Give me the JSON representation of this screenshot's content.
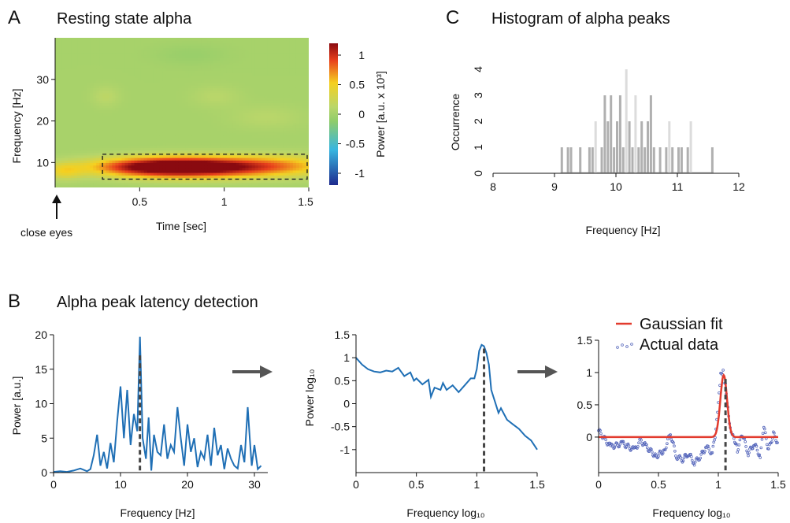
{
  "panels": {
    "A": {
      "letter": "A",
      "title": "Resting state alpha",
      "annotation": "close eyes"
    },
    "B": {
      "letter": "B",
      "title": "Alpha peak latency detection"
    },
    "C": {
      "letter": "C",
      "title": "Histogram of alpha peaks"
    }
  },
  "colors": {
    "accent_blue": "#1f6fb5",
    "fit_red": "#e23b2e",
    "scatter_blue": "#5566bb",
    "hist_gray": "#b0b0b0",
    "arrow_gray": "#555555"
  },
  "chart_data": [
    {
      "id": "A",
      "type": "heatmap",
      "title": "Resting state alpha",
      "xlabel": "Time [sec]",
      "ylabel": "Frequency [Hz]",
      "xlim": [
        0,
        1.5
      ],
      "ylim": [
        4,
        40
      ],
      "xticks": [
        0.5,
        1,
        1.5
      ],
      "yticks": [
        10,
        20,
        30
      ],
      "colorbar": {
        "label": "Power [a.u. x 10³]",
        "ticks": [
          1,
          0.5,
          0,
          -0.5,
          -1
        ],
        "range": [
          -1.2,
          1.2
        ]
      },
      "highlight_box": {
        "x": [
          0.28,
          1.5
        ],
        "y": [
          6,
          12
        ]
      },
      "features": [
        {
          "t": 0.62,
          "f": 9,
          "st": 0.28,
          "sf": 1.6,
          "amp": 1.25
        },
        {
          "t": 0.95,
          "f": 9,
          "st": 0.28,
          "sf": 1.7,
          "amp": 0.75
        },
        {
          "t": 1.35,
          "f": 9.3,
          "st": 0.25,
          "sf": 1.8,
          "amp": 0.45
        },
        {
          "t": 0.05,
          "f": 8,
          "st": 0.08,
          "sf": 1.4,
          "amp": 0.35
        },
        {
          "t": 0.3,
          "f": 26,
          "st": 0.06,
          "sf": 1.8,
          "amp": 0.12
        },
        {
          "t": 0.95,
          "f": 26,
          "st": 0.1,
          "sf": 1.8,
          "amp": 0.1
        },
        {
          "t": 1.25,
          "f": 21,
          "st": 0.15,
          "sf": 2.0,
          "amp": 0.1
        },
        {
          "t": 0.8,
          "f": 36,
          "st": 0.15,
          "sf": 1.8,
          "amp": -0.08
        }
      ]
    },
    {
      "id": "C",
      "type": "bar",
      "title": "Histogram of alpha peaks",
      "xlabel": "Frequency [Hz]",
      "ylabel": "Occurrence",
      "xlim": [
        8,
        12
      ],
      "ylim": [
        0,
        4
      ],
      "xticks": [
        8,
        9,
        10,
        11,
        12
      ],
      "yticks": [
        0,
        1,
        2,
        3,
        4
      ],
      "bin_width": 0.033,
      "bins": [
        {
          "x": 9.1,
          "v": 1,
          "s": "d"
        },
        {
          "x": 9.2,
          "v": 1,
          "s": "d"
        },
        {
          "x": 9.25,
          "v": 1,
          "s": "d"
        },
        {
          "x": 9.4,
          "v": 1,
          "s": "d"
        },
        {
          "x": 9.55,
          "v": 1,
          "s": "d"
        },
        {
          "x": 9.6,
          "v": 1,
          "s": "d"
        },
        {
          "x": 9.65,
          "v": 2,
          "s": "l"
        },
        {
          "x": 9.75,
          "v": 1,
          "s": "d"
        },
        {
          "x": 9.8,
          "v": 3,
          "s": "d"
        },
        {
          "x": 9.85,
          "v": 2,
          "s": "d"
        },
        {
          "x": 9.9,
          "v": 3,
          "s": "d"
        },
        {
          "x": 9.95,
          "v": 1,
          "s": "d"
        },
        {
          "x": 10.0,
          "v": 2,
          "s": "d"
        },
        {
          "x": 10.05,
          "v": 3,
          "s": "d"
        },
        {
          "x": 10.1,
          "v": 1,
          "s": "d"
        },
        {
          "x": 10.15,
          "v": 4,
          "s": "l"
        },
        {
          "x": 10.2,
          "v": 2,
          "s": "d"
        },
        {
          "x": 10.25,
          "v": 1,
          "s": "d"
        },
        {
          "x": 10.3,
          "v": 3,
          "s": "l"
        },
        {
          "x": 10.35,
          "v": 1,
          "s": "d"
        },
        {
          "x": 10.4,
          "v": 2,
          "s": "d"
        },
        {
          "x": 10.45,
          "v": 1,
          "s": "d"
        },
        {
          "x": 10.5,
          "v": 2,
          "s": "d"
        },
        {
          "x": 10.55,
          "v": 3,
          "s": "d"
        },
        {
          "x": 10.6,
          "v": 1,
          "s": "d"
        },
        {
          "x": 10.7,
          "v": 1,
          "s": "d"
        },
        {
          "x": 10.8,
          "v": 1,
          "s": "d"
        },
        {
          "x": 10.85,
          "v": 2,
          "s": "l"
        },
        {
          "x": 10.9,
          "v": 1,
          "s": "d"
        },
        {
          "x": 11.0,
          "v": 1,
          "s": "d"
        },
        {
          "x": 11.05,
          "v": 1,
          "s": "d"
        },
        {
          "x": 11.15,
          "v": 1,
          "s": "d"
        },
        {
          "x": 11.2,
          "v": 2,
          "s": "l"
        },
        {
          "x": 11.55,
          "v": 1,
          "s": "d"
        }
      ]
    },
    {
      "id": "B1",
      "type": "line",
      "xlabel": "Frequency [Hz]",
      "ylabel": "Power [a.u.]",
      "xlim": [
        0,
        32
      ],
      "ylim": [
        0,
        20
      ],
      "xticks": [
        0,
        10,
        20,
        30
      ],
      "yticks": [
        0,
        5,
        10,
        15,
        20
      ],
      "peak_marker_x": 12.9,
      "x": [
        0,
        1,
        2,
        3,
        4,
        5,
        5.5,
        6,
        6.5,
        7,
        7.5,
        8,
        8.5,
        9,
        9.5,
        10,
        10.5,
        11,
        11.5,
        12,
        12.5,
        12.9,
        13.3,
        13.8,
        14.2,
        14.6,
        15,
        15.5,
        16,
        16.5,
        17,
        17.5,
        18,
        18.5,
        19,
        19.5,
        20,
        20.5,
        21,
        21.5,
        22,
        22.5,
        23,
        23.5,
        24,
        24.5,
        25,
        25.5,
        26,
        26.5,
        27,
        27.5,
        28,
        28.5,
        29,
        29.3,
        29.6,
        30,
        30.5,
        31
      ],
      "y": [
        0.1,
        0.2,
        0.1,
        0.3,
        0.6,
        0.2,
        0.5,
        2.5,
        5.5,
        1,
        3,
        0.6,
        4.3,
        1.5,
        7.5,
        12.5,
        5,
        12,
        4,
        8.5,
        6,
        19.7,
        5,
        2,
        8,
        0.3,
        5.5,
        3,
        2.5,
        7,
        2,
        4,
        3,
        9.5,
        5,
        1,
        7,
        3,
        5,
        0.8,
        3,
        2,
        5.5,
        1,
        6.5,
        2.5,
        4,
        0.5,
        3.5,
        2,
        1,
        0.6,
        4,
        1.5,
        9.5,
        5,
        1,
        4,
        0.5,
        1
      ]
    },
    {
      "id": "B2",
      "type": "line",
      "xlabel": "Frequency log₁₀",
      "ylabel": "Power log₁₀",
      "xlim": [
        0,
        1.5
      ],
      "ylim": [
        -1.5,
        1.5
      ],
      "xticks": [
        0,
        0.5,
        1,
        1.5
      ],
      "yticks": [
        1.5,
        1,
        0.5,
        0,
        -0.5,
        -1
      ],
      "peak_marker_x": 1.06,
      "x": [
        0,
        0.05,
        0.1,
        0.15,
        0.2,
        0.25,
        0.3,
        0.35,
        0.4,
        0.45,
        0.48,
        0.5,
        0.55,
        0.6,
        0.62,
        0.65,
        0.7,
        0.72,
        0.75,
        0.8,
        0.85,
        0.9,
        0.95,
        0.98,
        1.0,
        1.02,
        1.04,
        1.06,
        1.08,
        1.1,
        1.12,
        1.15,
        1.18,
        1.2,
        1.25,
        1.3,
        1.35,
        1.4,
        1.45,
        1.5
      ],
      "y": [
        1.0,
        0.85,
        0.75,
        0.7,
        0.68,
        0.72,
        0.7,
        0.78,
        0.6,
        0.68,
        0.5,
        0.55,
        0.42,
        0.52,
        0.15,
        0.35,
        0.3,
        0.45,
        0.3,
        0.4,
        0.25,
        0.4,
        0.55,
        0.55,
        0.75,
        1.15,
        1.28,
        1.25,
        1.1,
        0.85,
        0.3,
        0.05,
        -0.2,
        -0.1,
        -0.35,
        -0.45,
        -0.55,
        -0.7,
        -0.8,
        -1.0
      ]
    },
    {
      "id": "B3",
      "type": "scatter",
      "xlabel": "Frequency log₁₀",
      "xlim": [
        0,
        1.5
      ],
      "ylim": [
        -0.55,
        1.5
      ],
      "xticks": [
        0,
        0.5,
        1,
        1.5
      ],
      "yticks": [
        1.5,
        1,
        0.5,
        0
      ],
      "peak_marker_x": 1.06,
      "legend": {
        "position": "top-right",
        "entries": [
          {
            "label": "Gaussian fit",
            "kind": "line"
          },
          {
            "label": "Actual data",
            "kind": "dots"
          }
        ]
      },
      "fit": {
        "mu": 1.045,
        "sigma": 0.028,
        "amp": 0.96,
        "baseline": 0
      },
      "scatter_segments": [
        {
          "x": 0.0,
          "y": 0.1
        },
        {
          "x": 0.1,
          "y": -0.15
        },
        {
          "x": 0.2,
          "y": -0.1
        },
        {
          "x": 0.3,
          "y": -0.2
        },
        {
          "x": 0.35,
          "y": -0.05
        },
        {
          "x": 0.4,
          "y": -0.15
        },
        {
          "x": 0.48,
          "y": -0.3
        },
        {
          "x": 0.55,
          "y": -0.2
        },
        {
          "x": 0.6,
          "y": 0.05
        },
        {
          "x": 0.65,
          "y": -0.3
        },
        {
          "x": 0.7,
          "y": -0.35
        },
        {
          "x": 0.75,
          "y": -0.25
        },
        {
          "x": 0.8,
          "y": -0.4
        },
        {
          "x": 0.85,
          "y": -0.3
        },
        {
          "x": 0.9,
          "y": -0.15
        },
        {
          "x": 0.95,
          "y": -0.25
        },
        {
          "x": 0.98,
          "y": 0.1
        },
        {
          "x": 1.0,
          "y": 0.5
        },
        {
          "x": 1.02,
          "y": 0.95
        },
        {
          "x": 1.04,
          "y": 1.0
        },
        {
          "x": 1.06,
          "y": 0.8
        },
        {
          "x": 1.08,
          "y": 0.45
        },
        {
          "x": 1.1,
          "y": 0.15
        },
        {
          "x": 1.13,
          "y": 0.0
        },
        {
          "x": 1.16,
          "y": -0.2
        },
        {
          "x": 1.2,
          "y": 0.05
        },
        {
          "x": 1.25,
          "y": -0.25
        },
        {
          "x": 1.3,
          "y": -0.1
        },
        {
          "x": 1.35,
          "y": -0.3
        },
        {
          "x": 1.38,
          "y": 0.15
        },
        {
          "x": 1.42,
          "y": -0.2
        },
        {
          "x": 1.46,
          "y": 0.05
        },
        {
          "x": 1.5,
          "y": -0.1
        }
      ]
    }
  ]
}
